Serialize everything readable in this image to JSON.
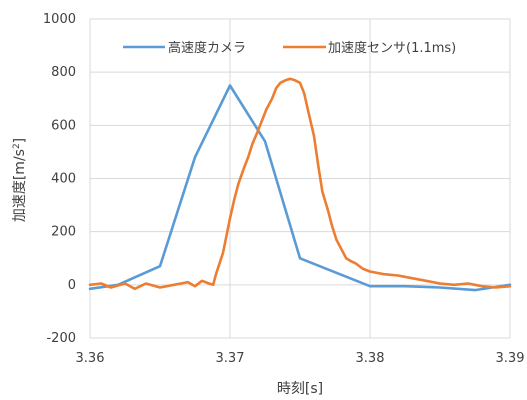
{
  "chart_data": {
    "type": "line",
    "xlabel": "時刻[s]",
    "ylabel_main": "加速度[m/s",
    "ylabel_sup": "2",
    "ylabel_tail": "]",
    "xlim": [
      3.36,
      3.39
    ],
    "ylim": [
      -200,
      1000
    ],
    "x_ticks": [
      3.36,
      3.37,
      3.38,
      3.39
    ],
    "x_tick_labels": [
      "3.36",
      "3.37",
      "3.38",
      "3.39"
    ],
    "y_ticks": [
      -200,
      0,
      200,
      400,
      600,
      800,
      1000
    ],
    "y_tick_labels": [
      "-200",
      "0",
      "200",
      "400",
      "600",
      "800",
      "1000"
    ],
    "grid": "vertical-and-horizontal",
    "legend_position": "top-right",
    "series": [
      {
        "name": "高速度カメラ",
        "color": "#5b9bd5",
        "x": [
          3.36,
          3.362,
          3.365,
          3.3675,
          3.37,
          3.3725,
          3.375,
          3.38,
          3.3825,
          3.385,
          3.3875,
          3.39
        ],
        "y": [
          -15,
          0,
          70,
          480,
          750,
          540,
          100,
          -5,
          -5,
          -10,
          -20,
          0
        ]
      },
      {
        "name": "加速度センサ(1.1ms)",
        "color": "#ed7d31",
        "x": [
          3.36,
          3.3608,
          3.3615,
          3.3625,
          3.3632,
          3.364,
          3.365,
          3.366,
          3.3665,
          3.367,
          3.3675,
          3.368,
          3.3685,
          3.3688,
          3.369,
          3.3695,
          3.37,
          3.3703,
          3.3706,
          3.371,
          3.3713,
          3.3716,
          3.372,
          3.3723,
          3.3726,
          3.373,
          3.3733,
          3.3736,
          3.374,
          3.3743,
          3.3746,
          3.375,
          3.3753,
          3.3756,
          3.376,
          3.3763,
          3.3766,
          3.377,
          3.3773,
          3.3776,
          3.378,
          3.3783,
          3.3786,
          3.379,
          3.3795,
          3.38,
          3.3805,
          3.381,
          3.382,
          3.383,
          3.384,
          3.385,
          3.386,
          3.387,
          3.388,
          3.389,
          3.39
        ],
        "y": [
          0,
          5,
          -10,
          5,
          -15,
          5,
          -10,
          0,
          5,
          10,
          -5,
          15,
          5,
          0,
          40,
          120,
          250,
          320,
          380,
          440,
          480,
          530,
          580,
          620,
          660,
          700,
          740,
          760,
          770,
          775,
          770,
          760,
          720,
          650,
          560,
          450,
          350,
          280,
          220,
          170,
          130,
          100,
          90,
          80,
          60,
          50,
          45,
          40,
          35,
          25,
          15,
          5,
          0,
          5,
          -5,
          -10,
          -5
        ]
      }
    ]
  }
}
